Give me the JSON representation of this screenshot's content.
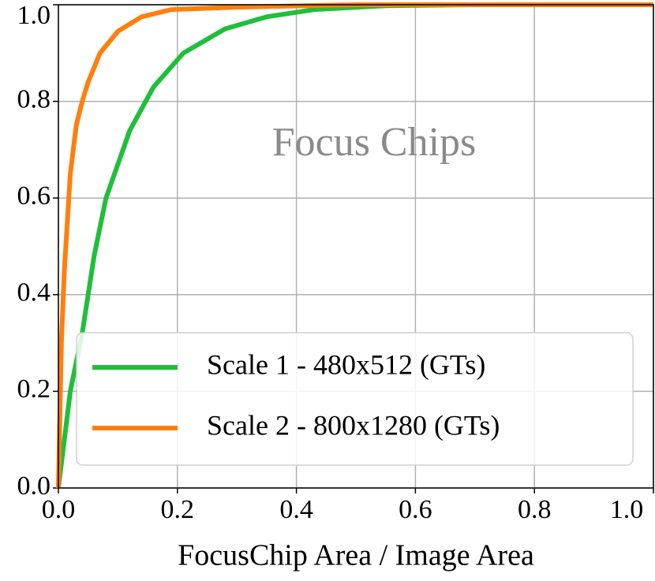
{
  "chart_data": {
    "type": "line",
    "xlabel": "FocusChip Area / Image Area",
    "annotation": "Focus Chips",
    "series": [
      {
        "name": "Scale 1 - 480x512 (GTs)",
        "color": "#1fbf3a",
        "x": [
          0,
          0.01,
          0.02,
          0.04,
          0.06,
          0.08,
          0.12,
          0.16,
          0.21,
          0.28,
          0.35,
          0.43,
          0.55,
          0.7,
          1.0
        ],
        "values": [
          0,
          0.1,
          0.2,
          0.32,
          0.48,
          0.6,
          0.74,
          0.83,
          0.9,
          0.95,
          0.975,
          0.99,
          0.998,
          1.0,
          1.0
        ]
      },
      {
        "name": "Scale 2 - 800x1280 (GTs)",
        "color": "#ff7f0e",
        "x": [
          0,
          0.005,
          0.01,
          0.02,
          0.03,
          0.04,
          0.05,
          0.07,
          0.1,
          0.14,
          0.19,
          0.3,
          0.5,
          1.0
        ],
        "values": [
          0,
          0.3,
          0.45,
          0.65,
          0.75,
          0.8,
          0.84,
          0.9,
          0.945,
          0.975,
          0.99,
          0.995,
          1.0,
          1.0
        ]
      }
    ],
    "xlim": [
      0,
      1.0
    ],
    "ylim": [
      0,
      1.0
    ],
    "xticks": [
      {
        "value": 0,
        "label": "0.0"
      },
      0.2,
      0.4,
      0.6,
      0.8,
      {
        "value": 1,
        "label": "1.0"
      }
    ],
    "yticks": [
      {
        "value": 0,
        "label": "0.0"
      },
      0.2,
      0.4,
      0.6,
      0.8,
      {
        "value": 1,
        "label": "1.0"
      }
    ],
    "grid": true,
    "legend": "lower right"
  }
}
